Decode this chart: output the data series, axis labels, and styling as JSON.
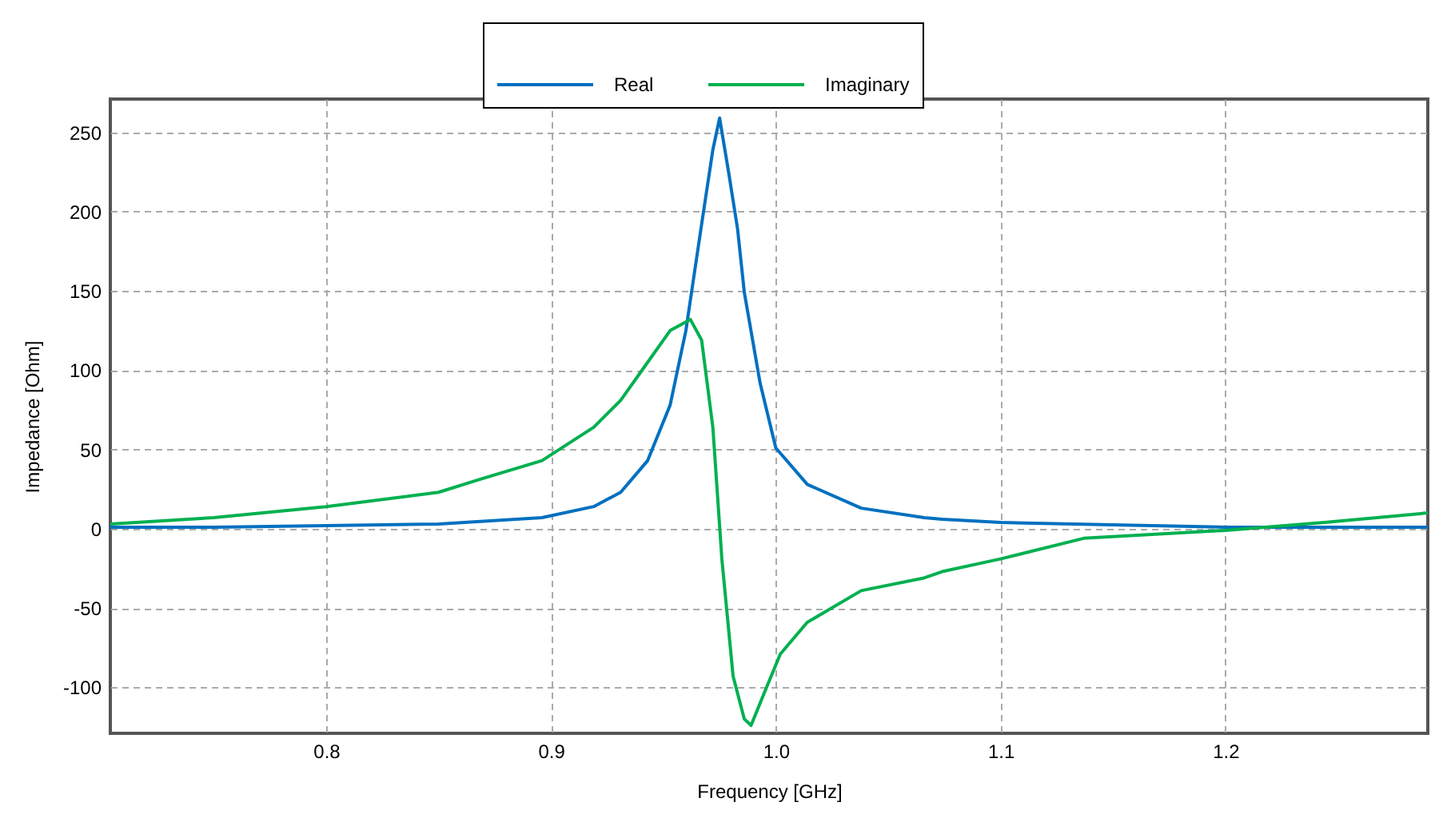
{
  "chart_data": {
    "type": "line",
    "xlabel": "Frequency [GHz]",
    "ylabel": "Impedance [Ohm]",
    "xlim": [
      0.704,
      1.29
    ],
    "ylim": [
      -129,
      271
    ],
    "xticks": [
      0.8,
      0.9,
      {
        "value": 1.0,
        "label": "1.0"
      },
      1.1,
      1.2
    ],
    "yticks": [
      -100,
      -50,
      0,
      50,
      100,
      150,
      200,
      250
    ],
    "grid": true,
    "legend": "top",
    "line_style": "solid",
    "marker": "none",
    "series": [
      {
        "name": "Real",
        "color": "#0070c0",
        "x": [
          0.704,
          0.75,
          0.8,
          0.85,
          0.896,
          0.919,
          0.931,
          0.943,
          0.953,
          0.96,
          0.967,
          0.972,
          0.975,
          0.979,
          0.983,
          0.986,
          0.993,
          1.0,
          1.014,
          1.038,
          1.066,
          1.074,
          1.1,
          1.2,
          1.29
        ],
        "values": [
          1,
          1,
          2,
          3,
          7,
          14,
          23,
          43,
          78,
          125,
          192,
          239,
          259,
          225,
          189,
          149,
          92,
          51,
          28,
          13,
          7,
          6,
          4,
          1,
          1
        ]
      },
      {
        "name": "Imaginary",
        "color": "#00b050",
        "x": [
          0.704,
          0.75,
          0.8,
          0.85,
          0.868,
          0.896,
          0.919,
          0.931,
          0.943,
          0.953,
          0.962,
          0.967,
          0.972,
          0.976,
          0.981,
          0.986,
          0.989,
          0.995,
          1.002,
          1.014,
          1.038,
          1.066,
          1.074,
          1.1,
          1.137,
          1.2,
          1.244,
          1.29
        ],
        "values": [
          3,
          7,
          14,
          23,
          31,
          43,
          64,
          81,
          105,
          125,
          132,
          119,
          64,
          -19,
          -93,
          -120,
          -124,
          -103,
          -79,
          -59,
          -39,
          -31,
          -27,
          -19,
          -6,
          -1,
          4,
          10
        ]
      }
    ]
  }
}
